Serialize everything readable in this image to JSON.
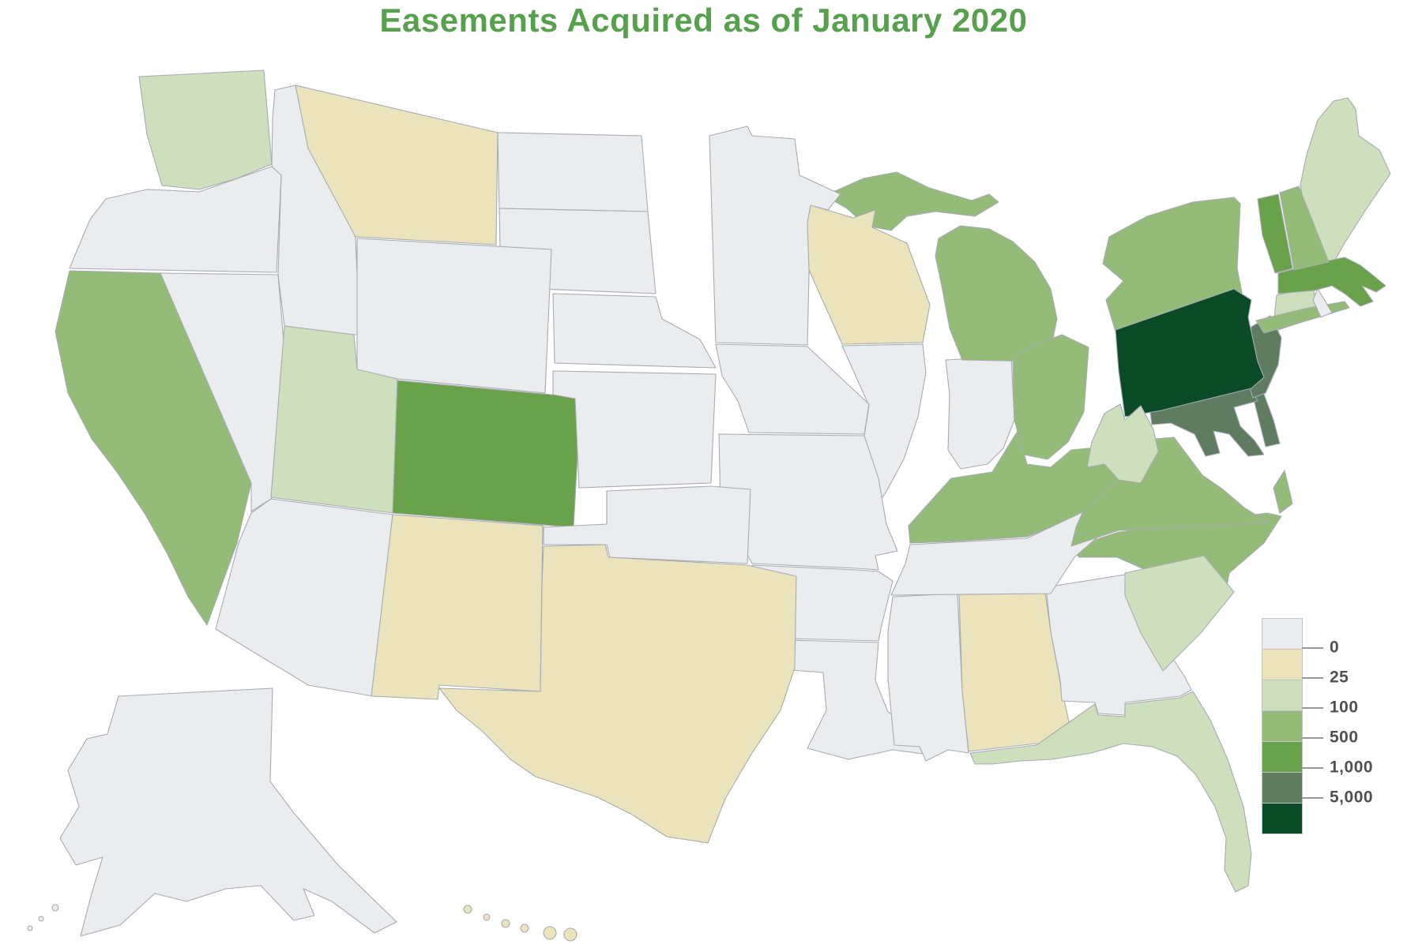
{
  "title": "Easements Acquired as of January 2020",
  "colors": {
    "title": "#57a14e",
    "state_border": "#a7abb2",
    "background": "#ffffff"
  },
  "legend": {
    "position": "bottom-right",
    "tick_labels": [
      "0",
      "25",
      "100",
      "500",
      "1,000",
      "5,000"
    ],
    "bands": [
      {
        "label": "0",
        "color": "#ebecee"
      },
      {
        "label": "1–25",
        "color": "#eae3bc"
      },
      {
        "label": "26–100",
        "color": "#cddfbd"
      },
      {
        "label": "101–500",
        "color": "#94bc78"
      },
      {
        "label": "501–1,000",
        "color": "#6aa14b"
      },
      {
        "label": "1,001–5,000",
        "color": "#5f7c60"
      },
      {
        "label": "5,000+",
        "color": "#0b4a26"
      }
    ]
  },
  "chart_data": {
    "type": "heatmap",
    "subtype": "choropleth-us-states",
    "title": "Easements Acquired as of January 2020",
    "unit": "easements acquired",
    "legend_thresholds": [
      0,
      25,
      100,
      500,
      1000,
      5000
    ],
    "grid": false,
    "states": [
      {
        "abbr": "AL",
        "name": "Alabama",
        "band": 1,
        "range": "1–25"
      },
      {
        "abbr": "AK",
        "name": "Alaska",
        "band": 0,
        "range": "0"
      },
      {
        "abbr": "AZ",
        "name": "Arizona",
        "band": 0,
        "range": "0"
      },
      {
        "abbr": "AR",
        "name": "Arkansas",
        "band": 0,
        "range": "0"
      },
      {
        "abbr": "CA",
        "name": "California",
        "band": 3,
        "range": "101–500"
      },
      {
        "abbr": "CO",
        "name": "Colorado",
        "band": 4,
        "range": "501–1,000"
      },
      {
        "abbr": "CT",
        "name": "Connecticut",
        "band": 2,
        "range": "26–100"
      },
      {
        "abbr": "DE",
        "name": "Delaware",
        "band": 5,
        "range": "1,001–5,000"
      },
      {
        "abbr": "FL",
        "name": "Florida",
        "band": 2,
        "range": "26–100"
      },
      {
        "abbr": "GA",
        "name": "Georgia",
        "band": 0,
        "range": "0"
      },
      {
        "abbr": "HI",
        "name": "Hawaii",
        "band": 1,
        "range": "1–25"
      },
      {
        "abbr": "ID",
        "name": "Idaho",
        "band": 0,
        "range": "0"
      },
      {
        "abbr": "IL",
        "name": "Illinois",
        "band": 0,
        "range": "0"
      },
      {
        "abbr": "IN",
        "name": "Indiana",
        "band": 0,
        "range": "0"
      },
      {
        "abbr": "IA",
        "name": "Iowa",
        "band": 0,
        "range": "0"
      },
      {
        "abbr": "KS",
        "name": "Kansas",
        "band": 0,
        "range": "0"
      },
      {
        "abbr": "KY",
        "name": "Kentucky",
        "band": 3,
        "range": "101–500"
      },
      {
        "abbr": "LA",
        "name": "Louisiana",
        "band": 0,
        "range": "0"
      },
      {
        "abbr": "ME",
        "name": "Maine",
        "band": 2,
        "range": "26–100"
      },
      {
        "abbr": "MD",
        "name": "Maryland",
        "band": 5,
        "range": "1,001–5,000"
      },
      {
        "abbr": "MA",
        "name": "Massachusetts",
        "band": 4,
        "range": "501–1,000"
      },
      {
        "abbr": "MI",
        "name": "Michigan",
        "band": 3,
        "range": "101–500"
      },
      {
        "abbr": "MN",
        "name": "Minnesota",
        "band": 0,
        "range": "0"
      },
      {
        "abbr": "MS",
        "name": "Mississippi",
        "band": 0,
        "range": "0"
      },
      {
        "abbr": "MO",
        "name": "Missouri",
        "band": 0,
        "range": "0"
      },
      {
        "abbr": "MT",
        "name": "Montana",
        "band": 1,
        "range": "1–25"
      },
      {
        "abbr": "NE",
        "name": "Nebraska",
        "band": 0,
        "range": "0"
      },
      {
        "abbr": "NV",
        "name": "Nevada",
        "band": 0,
        "range": "0"
      },
      {
        "abbr": "NH",
        "name": "New Hampshire",
        "band": 3,
        "range": "101–500"
      },
      {
        "abbr": "NJ",
        "name": "New Jersey",
        "band": 5,
        "range": "1,001–5,000"
      },
      {
        "abbr": "NM",
        "name": "New Mexico",
        "band": 1,
        "range": "1–25"
      },
      {
        "abbr": "NY",
        "name": "New York",
        "band": 3,
        "range": "101–500"
      },
      {
        "abbr": "NC",
        "name": "North Carolina",
        "band": 3,
        "range": "101–500"
      },
      {
        "abbr": "ND",
        "name": "North Dakota",
        "band": 0,
        "range": "0"
      },
      {
        "abbr": "OH",
        "name": "Ohio",
        "band": 3,
        "range": "101–500"
      },
      {
        "abbr": "OK",
        "name": "Oklahoma",
        "band": 0,
        "range": "0"
      },
      {
        "abbr": "OR",
        "name": "Oregon",
        "band": 0,
        "range": "0"
      },
      {
        "abbr": "PA",
        "name": "Pennsylvania",
        "band": 6,
        "range": "5,000+"
      },
      {
        "abbr": "RI",
        "name": "Rhode Island",
        "band": 0,
        "range": "0"
      },
      {
        "abbr": "SC",
        "name": "South Carolina",
        "band": 2,
        "range": "26–100"
      },
      {
        "abbr": "SD",
        "name": "South Dakota",
        "band": 0,
        "range": "0"
      },
      {
        "abbr": "TN",
        "name": "Tennessee",
        "band": 0,
        "range": "0"
      },
      {
        "abbr": "TX",
        "name": "Texas",
        "band": 1,
        "range": "1–25"
      },
      {
        "abbr": "UT",
        "name": "Utah",
        "band": 2,
        "range": "26–100"
      },
      {
        "abbr": "VT",
        "name": "Vermont",
        "band": 4,
        "range": "501–1,000"
      },
      {
        "abbr": "VA",
        "name": "Virginia",
        "band": 3,
        "range": "101–500"
      },
      {
        "abbr": "WA",
        "name": "Washington",
        "band": 2,
        "range": "26–100"
      },
      {
        "abbr": "WV",
        "name": "West Virginia",
        "band": 2,
        "range": "26–100"
      },
      {
        "abbr": "WI",
        "name": "Wisconsin",
        "band": 1,
        "range": "1–25"
      },
      {
        "abbr": "WY",
        "name": "Wyoming",
        "band": 0,
        "range": "0"
      }
    ]
  }
}
